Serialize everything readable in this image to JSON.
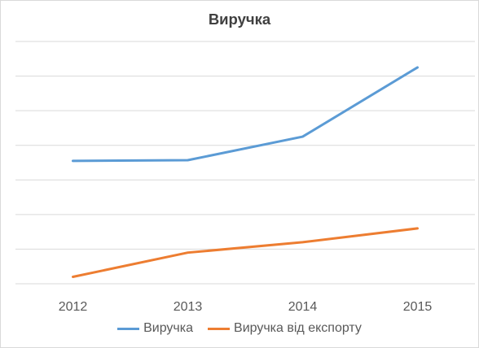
{
  "chart_data": {
    "type": "line",
    "title": "Виручка",
    "xlabel": "",
    "ylabel": "",
    "categories": [
      "2012",
      "2013",
      "2014",
      "2015"
    ],
    "series": [
      {
        "name": "Виручка",
        "color": "#5b9bd5",
        "values": [
          3.55,
          3.57,
          4.25,
          6.25
        ]
      },
      {
        "name": "Виручка від експорту",
        "color": "#ed7d31",
        "values": [
          0.2,
          0.9,
          1.2,
          1.6
        ]
      }
    ],
    "ylim": [
      0,
      7
    ],
    "y_gridlines": [
      0,
      1,
      2,
      3,
      4,
      5,
      6,
      7
    ],
    "y_axis_labels_visible": false,
    "grid": true,
    "legend_position": "bottom"
  }
}
